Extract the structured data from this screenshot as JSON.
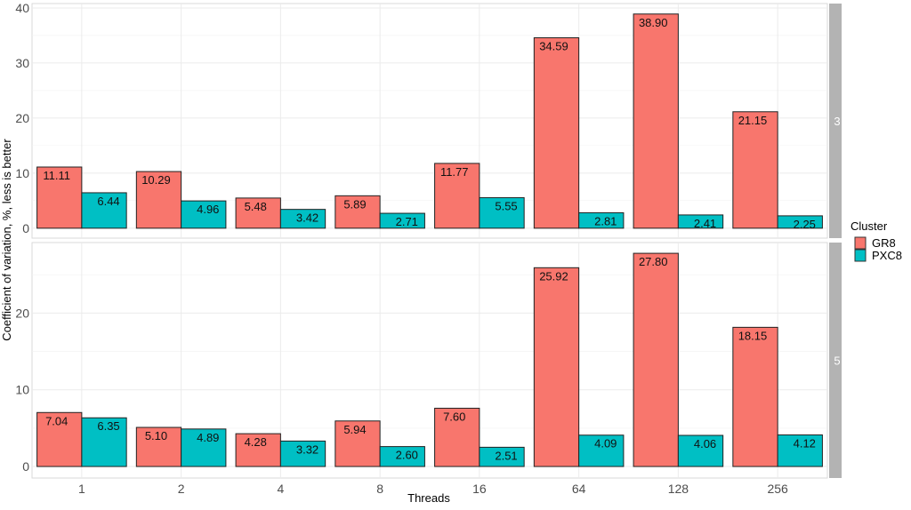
{
  "chart_data": {
    "type": "bar",
    "xlabel": "Threads",
    "ylabel": "Coefficient of variation, %, less is better",
    "categories": [
      "1",
      "2",
      "4",
      "8",
      "16",
      "64",
      "128",
      "256"
    ],
    "legend": {
      "title": "Cluster",
      "position": "right"
    },
    "series_colors": {
      "GR8": "#F8766D",
      "PXC8": "#00BFC4"
    },
    "grid": true,
    "panels": [
      {
        "strip": "3",
        "ylim": [
          -1.8,
          40.8
        ],
        "yticks": [
          0,
          10,
          20,
          30,
          40
        ],
        "series": [
          {
            "name": "GR8",
            "values": [
              11.11,
              10.29,
              5.48,
              5.89,
              11.77,
              34.59,
              38.9,
              21.15
            ],
            "labels": [
              "11.11",
              "10.29",
              "5.48",
              "5.89",
              "11.77",
              "34.59",
              "38.90",
              "21.15"
            ]
          },
          {
            "name": "PXC8",
            "values": [
              6.44,
              4.96,
              3.42,
              2.71,
              5.55,
              2.81,
              2.41,
              2.25
            ],
            "labels": [
              "6.44",
              "4.96",
              "3.42",
              "2.71",
              "5.55",
              "2.81",
              "2.41",
              "2.25"
            ]
          }
        ]
      },
      {
        "strip": "5",
        "ylim": [
          -1.5,
          29.2
        ],
        "yticks": [
          0,
          10,
          20
        ],
        "series": [
          {
            "name": "GR8",
            "values": [
              7.04,
              5.1,
              4.28,
              5.94,
              7.6,
              25.92,
              27.8,
              18.15
            ],
            "labels": [
              "7.04",
              "5.10",
              "4.28",
              "5.94",
              "7.60",
              "25.92",
              "27.80",
              "18.15"
            ]
          },
          {
            "name": "PXC8",
            "values": [
              6.35,
              4.89,
              3.32,
              2.6,
              2.51,
              4.09,
              4.06,
              4.12
            ],
            "labels": [
              "6.35",
              "4.89",
              "3.32",
              "2.60",
              "2.51",
              "4.09",
              "4.06",
              "4.12"
            ]
          }
        ]
      }
    ]
  }
}
